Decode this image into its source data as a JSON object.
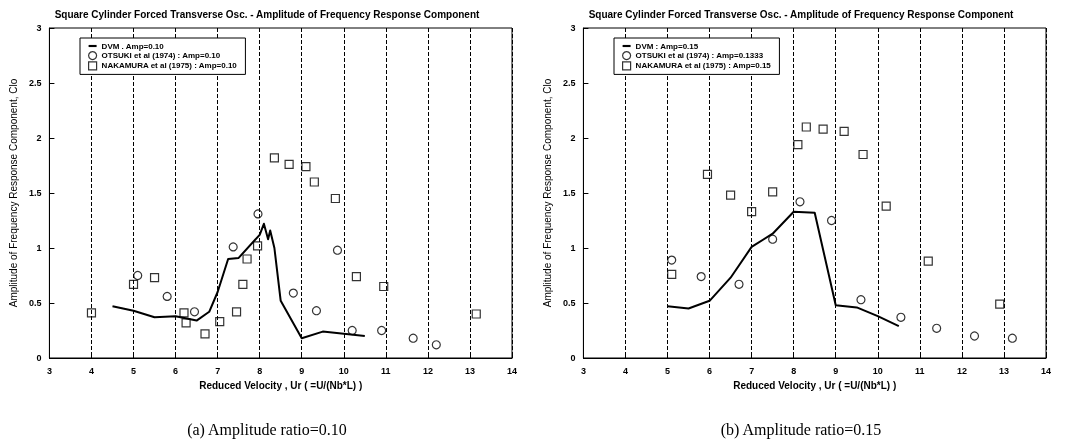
{
  "chart_data": [
    {
      "type": "scatter",
      "title": "Square Cylinder Forced Transverse Osc. - Amplitude of Frequency Response Component",
      "xlabel": "Reduced Velocity , Ur ( =U/(Nb*L) )",
      "ylabel": "Amplitude of Frequency Response Component, Clo",
      "annotations": [
        "(a) Amplitude ratio=0.10"
      ],
      "xlim": [
        3,
        14
      ],
      "xticks": [
        3,
        4,
        5,
        6,
        7,
        8,
        9,
        10,
        11,
        12,
        13,
        14
      ],
      "ylim": [
        0,
        3
      ],
      "yticks": [
        0,
        0.5,
        1,
        1.5,
        2,
        2.5,
        3
      ],
      "grid": "x",
      "legend": "top left",
      "series": [
        {
          "name": "DVM . Amp=0.10",
          "type": "line",
          "color": "#000000",
          "marker": "none",
          "line_style": "solid",
          "x": [
            4.5,
            5,
            5.5,
            6,
            6.5,
            6.8,
            7,
            7.25,
            7.5,
            8,
            8.1,
            8.2,
            8.25,
            8.35,
            8.5,
            9,
            9.5,
            10,
            10.5
          ],
          "values": [
            0.47,
            0.43,
            0.37,
            0.38,
            0.34,
            0.42,
            0.6,
            0.9,
            0.91,
            1.12,
            1.22,
            1.08,
            1.16,
            1.0,
            0.52,
            0.18,
            0.24,
            0.22,
            0.2
          ]
        },
        {
          "name": "OTSUKI et al (1974) : Amp=0.10",
          "color": "#000000",
          "marker": "circle",
          "x": [
            5.1,
            5.8,
            6.45,
            7.37,
            7.96,
            8.8,
            9.35,
            9.85,
            10.2,
            10.9,
            11.65,
            12.2
          ],
          "values": [
            0.75,
            0.56,
            0.42,
            1.01,
            1.31,
            0.59,
            0.43,
            0.98,
            0.25,
            0.25,
            0.18,
            0.12
          ]
        },
        {
          "name": "NAKAMURA et al (1975) : Amp=0.10",
          "color": "#000000",
          "marker": "square",
          "x": [
            4.0,
            5.0,
            5.5,
            6.2,
            6.25,
            6.7,
            7.05,
            7.45,
            7.6,
            7.7,
            7.95,
            8.35,
            8.7,
            9.1,
            9.3,
            9.8,
            10.3,
            10.95,
            13.15
          ],
          "values": [
            0.41,
            0.67,
            0.73,
            0.41,
            0.32,
            0.22,
            0.33,
            0.42,
            0.67,
            0.9,
            1.02,
            1.82,
            1.76,
            1.74,
            1.6,
            1.45,
            0.74,
            0.65,
            0.4
          ]
        }
      ]
    },
    {
      "type": "scatter",
      "title": "Square Cylinder Forced Transverse Osc. - Amplitude of Frequency Response Component",
      "xlabel": "Reduced Velocity , Ur ( =U/(Nb*L) )",
      "ylabel": "Amplitude of Frequency Response Component, Clo",
      "annotations": [
        "(b) Amplitude ratio=0.15"
      ],
      "xlim": [
        3,
        14
      ],
      "xticks": [
        3,
        4,
        5,
        6,
        7,
        8,
        9,
        10,
        11,
        12,
        13,
        14
      ],
      "ylim": [
        0,
        3
      ],
      "yticks": [
        0,
        0.5,
        1,
        1.5,
        2,
        2.5,
        3
      ],
      "grid": "x",
      "legend": "top left",
      "series": [
        {
          "name": "DVM : Amp=0.15",
          "type": "line",
          "color": "#000000",
          "marker": "none",
          "line_style": "solid",
          "x": [
            5,
            5.5,
            6,
            6.5,
            7,
            7.5,
            8,
            8.5,
            9,
            9.5,
            10,
            10.5
          ],
          "values": [
            0.47,
            0.45,
            0.52,
            0.73,
            1.01,
            1.13,
            1.33,
            1.32,
            0.48,
            0.46,
            0.38,
            0.29
          ]
        },
        {
          "name": "OTSUKI et al (1974) : Amp=0.1333",
          "color": "#000000",
          "marker": "circle",
          "x": [
            5.1,
            5.8,
            6.7,
            7.5,
            8.15,
            8.9,
            9.6,
            10.55,
            11.4,
            12.3,
            13.2
          ],
          "values": [
            0.89,
            0.74,
            0.67,
            1.08,
            1.42,
            1.25,
            0.53,
            0.37,
            0.27,
            0.2,
            0.18
          ]
        },
        {
          "name": "NAKAMURA et al (1975) : Amp=0.15",
          "color": "#000000",
          "marker": "square",
          "x": [
            5.1,
            5.95,
            6.5,
            7.0,
            7.5,
            8.1,
            8.3,
            8.7,
            9.2,
            9.65,
            10.2,
            11.2,
            12.9
          ],
          "values": [
            0.76,
            1.67,
            1.48,
            1.33,
            1.51,
            1.94,
            2.1,
            2.08,
            2.06,
            1.85,
            1.38,
            0.88,
            0.49
          ]
        }
      ]
    }
  ]
}
